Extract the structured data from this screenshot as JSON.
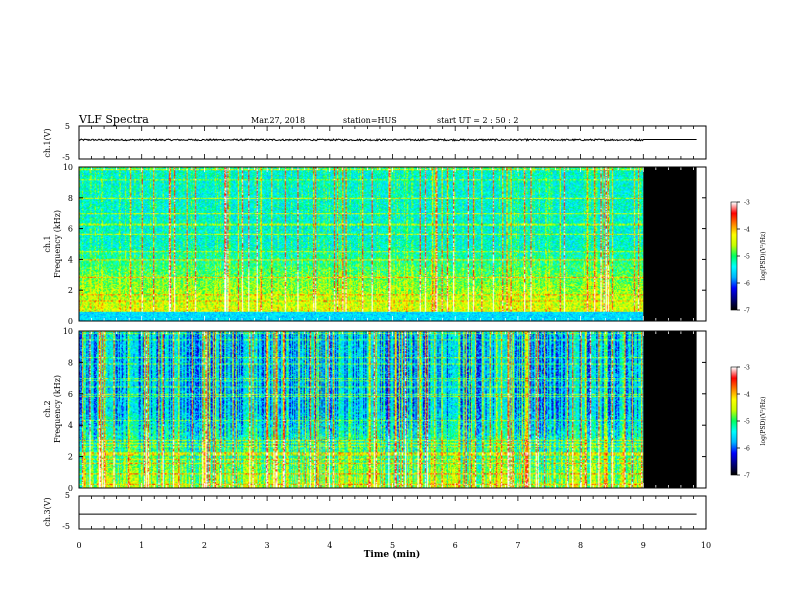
{
  "header": {
    "title": "VLF Spectra",
    "date": "Mar.27, 2018",
    "station": "station=HUS",
    "start_ut": "start  UT =  2 : 50 : 2"
  },
  "chart_data": [
    {
      "type": "line",
      "panel": "ch1-voltage",
      "ylabel": "ch.1(V)",
      "ylim": [
        -5,
        5
      ],
      "yticks": [
        "5",
        "-5"
      ],
      "series": [
        {
          "name": "ch.1",
          "x": [
            0,
            9,
            9,
            9.85
          ],
          "y": [
            0.8,
            0.8,
            0.9,
            0.9
          ],
          "noise_amplitude": 0.25,
          "noise_end": 9
        }
      ]
    },
    {
      "type": "heatmap",
      "panel": "ch1-spectrogram",
      "ylabel": "ch.1\nFrequency (kHz)",
      "ylabel_lines": [
        "ch.1",
        "Frequency (kHz)"
      ],
      "xlim": [
        0,
        10
      ],
      "ylim": [
        0,
        10
      ],
      "yticks": [
        "0",
        "2",
        "4",
        "6",
        "8",
        "10"
      ],
      "data_end_min": 9.0,
      "blank_end_min": 9.85,
      "colorbar": {
        "label": "log(PSD)(V²/Hz)",
        "ticks": [
          "-3",
          "-4",
          "-5",
          "-6",
          "-7"
        ],
        "range": [
          -7,
          -3
        ]
      }
    },
    {
      "type": "heatmap",
      "panel": "ch2-spectrogram",
      "ylabel": "ch.2\nFrequency (kHz)",
      "ylabel_lines": [
        "ch.2",
        "Frequency (kHz)"
      ],
      "xlim": [
        0,
        10
      ],
      "ylim": [
        0,
        10
      ],
      "yticks": [
        "0",
        "2",
        "4",
        "6",
        "8",
        "10"
      ],
      "data_end_min": 9.0,
      "blank_end_min": 9.85,
      "colorbar": {
        "label": "log(PSD)(V²/Hz)",
        "ticks": [
          "-3",
          "-4",
          "-5",
          "-6",
          "-7"
        ],
        "range": [
          -7,
          -3
        ]
      }
    },
    {
      "type": "line",
      "panel": "ch3-voltage",
      "ylabel": "ch.3(V)",
      "ylim": [
        -5,
        5
      ],
      "yticks": [
        "5",
        "-5"
      ],
      "series": [
        {
          "name": "ch.3",
          "x": [
            0,
            9.85
          ],
          "y": [
            -0.5,
            -0.5
          ]
        }
      ]
    }
  ],
  "xaxis": {
    "label": "Time  (min)",
    "ticks": [
      "0",
      "1",
      "2",
      "3",
      "4",
      "5",
      "6",
      "7",
      "8",
      "9",
      "10"
    ],
    "xlim": [
      0,
      10
    ]
  },
  "colors": {
    "colormap": [
      "#000000",
      "#000080",
      "#0000ff",
      "#00b4ff",
      "#00ffff",
      "#00ff60",
      "#c8ff00",
      "#ffff00",
      "#ff8000",
      "#ff0000",
      "#ffffff"
    ],
    "blank": "#000000",
    "trace": "#000000"
  }
}
